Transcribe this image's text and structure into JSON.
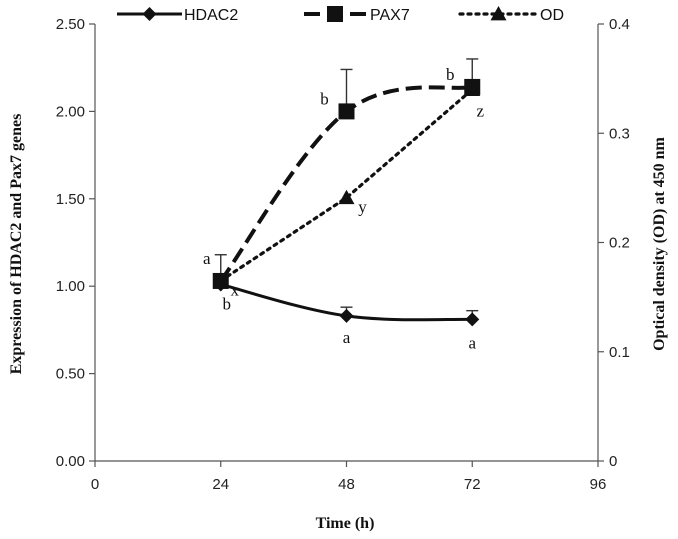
{
  "chart_data": {
    "type": "line",
    "title": "",
    "xlabel": "Time (h)",
    "ylabel_left": "Expression of HDAC2 and Pax7 genes",
    "ylabel_right": "Optical density (OD)  at 450 nm",
    "xlim": [
      0,
      96
    ],
    "x_ticks": [
      0,
      24,
      48,
      72,
      96
    ],
    "ylim_left": [
      0,
      2.5
    ],
    "y_ticks_left": [
      "0.00",
      "0.50",
      "1.00",
      "1.50",
      "2.00",
      "2.50"
    ],
    "ylim_right": [
      0,
      0.4
    ],
    "y_ticks_right": [
      "0",
      "0.1",
      "0.2",
      "0.3",
      "0.4"
    ],
    "grid": false,
    "legend_position": "top",
    "series": [
      {
        "name": "HDAC2",
        "axis": "left",
        "style": "solid",
        "marker": "diamond",
        "x": [
          24,
          48,
          72
        ],
        "values": [
          1.01,
          0.83,
          0.81
        ],
        "error": [
          0.0,
          0.05,
          0.05
        ],
        "labels": [
          "b",
          "a",
          "a"
        ]
      },
      {
        "name": "PAX7",
        "axis": "left",
        "style": "dashed",
        "marker": "square",
        "x": [
          24,
          48,
          72
        ],
        "values": [
          1.03,
          2.0,
          2.14
        ],
        "error": [
          0.15,
          0.24,
          0.16
        ],
        "labels": [
          "a",
          "b",
          "b"
        ]
      },
      {
        "name": "OD",
        "axis": "right",
        "style": "dotted",
        "marker": "triangle",
        "x": [
          24,
          48,
          72
        ],
        "values": [
          0.165,
          0.241,
          0.34
        ],
        "error": [
          0,
          0,
          0
        ],
        "labels": [
          "x",
          "y",
          "z"
        ]
      }
    ]
  }
}
